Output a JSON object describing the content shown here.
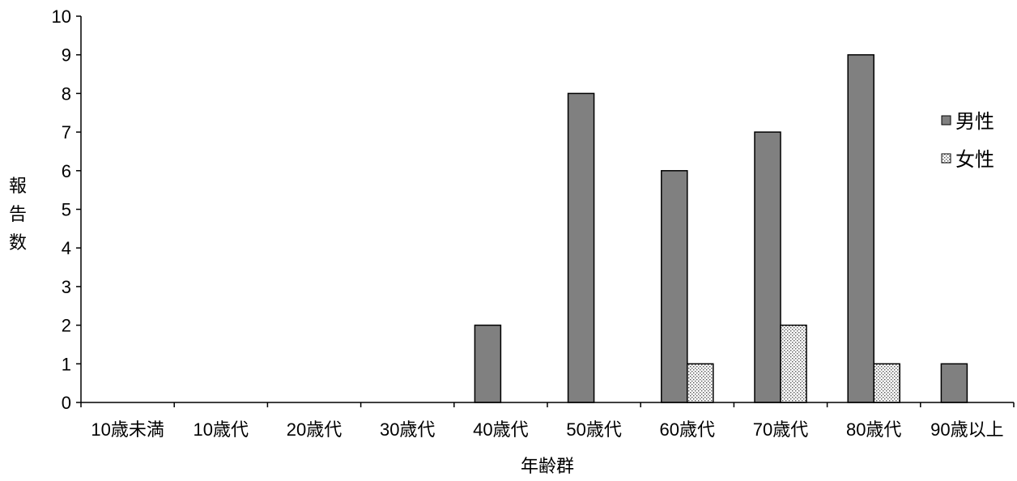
{
  "chart_data": {
    "type": "bar",
    "categories": [
      "10歳未満",
      "10歳代",
      "20歳代",
      "30歳代",
      "40歳代",
      "50歳代",
      "60歳代",
      "70歳代",
      "80歳代",
      "90歳以上"
    ],
    "series": [
      {
        "name": "男性",
        "values": [
          0,
          0,
          0,
          0,
          2,
          8,
          6,
          7,
          9,
          1
        ],
        "color": "#808080",
        "pattern": "solid"
      },
      {
        "name": "女性",
        "values": [
          0,
          0,
          0,
          0,
          0,
          0,
          1,
          2,
          1,
          0
        ],
        "color": "#ffffff",
        "pattern": "dotted"
      }
    ],
    "title": "",
    "xlabel": "年齢群",
    "ylabel_chars": [
      "報",
      "告",
      "数"
    ],
    "ylim": [
      0,
      10
    ],
    "yticks": [
      "0",
      "1",
      "2",
      "3",
      "4",
      "5",
      "6",
      "7",
      "8",
      "9",
      "10"
    ],
    "grid": false,
    "legend_position": "right"
  }
}
